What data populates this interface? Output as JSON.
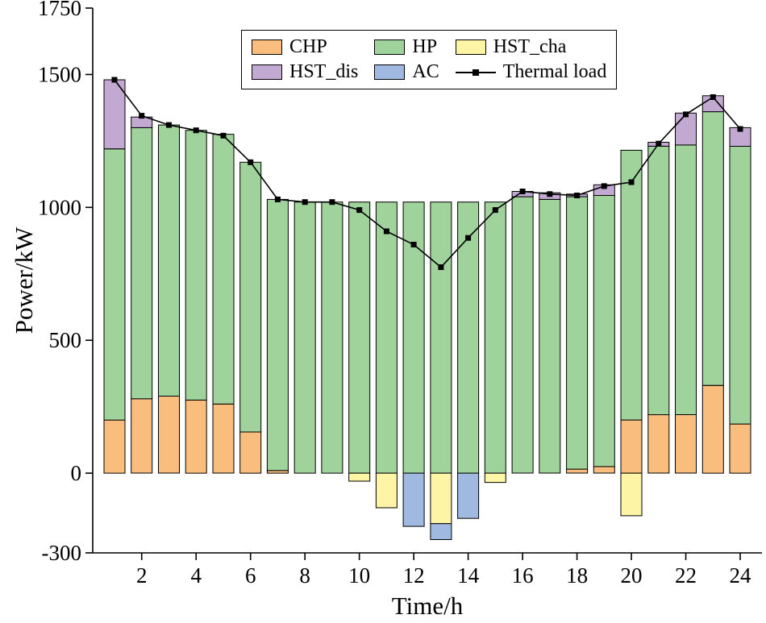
{
  "figure": {
    "background": "#ffffff"
  },
  "chart_data": {
    "type": "bar",
    "stacked": true,
    "title": "",
    "xlabel": "Time/h",
    "ylabel": "Power/kW",
    "grid": false,
    "legend_position": "top-center",
    "xlim": [
      0.2,
      24.8
    ],
    "ylim": [
      -300,
      1750
    ],
    "y_ticks": [
      1750,
      1500,
      1000,
      500,
      0,
      -300
    ],
    "x_ticks": [
      2,
      4,
      6,
      8,
      10,
      12,
      14,
      16,
      18,
      20,
      22,
      24
    ],
    "x": [
      1,
      2,
      3,
      4,
      5,
      6,
      7,
      8,
      9,
      10,
      11,
      12,
      13,
      14,
      15,
      16,
      17,
      18,
      19,
      20,
      21,
      22,
      23,
      24
    ],
    "series": [
      {
        "name": "CHP",
        "type": "bar",
        "color": "#F9BE7E",
        "values": [
          200,
          280,
          290,
          275,
          260,
          155,
          10,
          0,
          0,
          0,
          0,
          0,
          0,
          0,
          0,
          0,
          0,
          15,
          25,
          200,
          220,
          220,
          330,
          185
        ]
      },
      {
        "name": "HP",
        "type": "bar",
        "color": "#A0D29B",
        "values": [
          1020,
          1020,
          1020,
          1015,
          1015,
          1015,
          1020,
          1020,
          1020,
          1020,
          1020,
          1020,
          1020,
          1020,
          1020,
          1040,
          1030,
          1025,
          1020,
          1015,
          1010,
          1015,
          1030,
          1045
        ]
      },
      {
        "name": "HST_dis",
        "type": "bar",
        "color": "#C2A9D2",
        "values": [
          260,
          40,
          0,
          0,
          0,
          0,
          0,
          0,
          0,
          0,
          0,
          0,
          0,
          0,
          0,
          20,
          25,
          10,
          40,
          0,
          15,
          120,
          60,
          70
        ]
      },
      {
        "name": "HST_cha",
        "type": "bar",
        "color": "#FDF4A6",
        "values": [
          0,
          0,
          0,
          0,
          0,
          0,
          0,
          0,
          0,
          -30,
          -130,
          0,
          -190,
          0,
          -35,
          0,
          0,
          0,
          0,
          -160,
          0,
          0,
          0,
          0
        ]
      },
      {
        "name": "AC",
        "type": "bar",
        "color": "#9FB9E1",
        "values": [
          0,
          0,
          0,
          0,
          0,
          0,
          0,
          0,
          0,
          0,
          0,
          -200,
          -60,
          -170,
          0,
          0,
          0,
          0,
          0,
          0,
          0,
          0,
          0,
          0
        ]
      },
      {
        "name": "Thermal load",
        "type": "line",
        "color": "#000000",
        "values": [
          1480,
          1345,
          1310,
          1290,
          1270,
          1170,
          1030,
          1020,
          1020,
          990,
          910,
          860,
          775,
          885,
          990,
          1060,
          1050,
          1045,
          1080,
          1095,
          1240,
          1350,
          1415,
          1295
        ]
      }
    ],
    "legend_order": [
      "CHP",
      "HP",
      "HST_cha",
      "HST_dis",
      "AC",
      "Thermal load"
    ]
  }
}
